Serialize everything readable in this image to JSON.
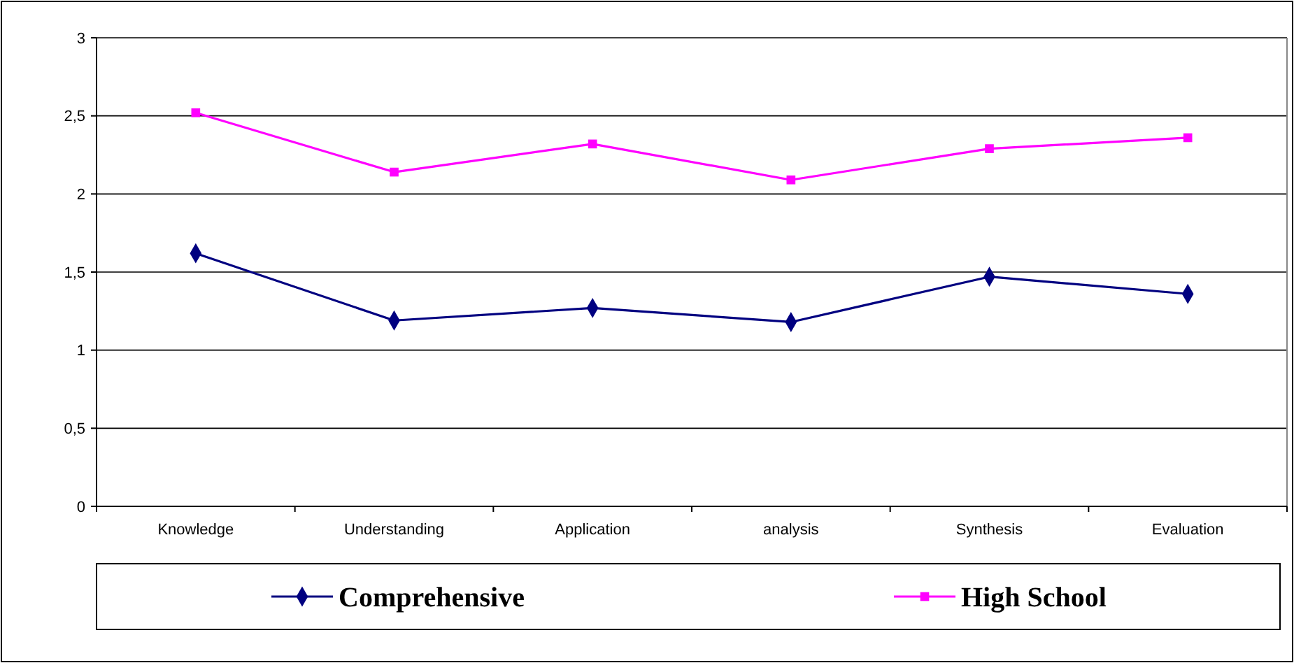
{
  "chart_data": {
    "type": "line",
    "categories": [
      "Knowledge",
      "Understanding",
      "Application",
      "analysis",
      "Synthesis",
      "Evaluation"
    ],
    "series": [
      {
        "name": "Comprehensive",
        "color": "#000080",
        "marker": "diamond",
        "values": [
          1.62,
          1.19,
          1.27,
          1.18,
          1.47,
          1.36
        ]
      },
      {
        "name": "High School",
        "color": "#ff00ff",
        "marker": "square",
        "values": [
          2.52,
          2.14,
          2.32,
          2.09,
          2.29,
          2.36
        ]
      }
    ],
    "ylim": [
      0,
      3
    ],
    "yticks": [
      {
        "value": 0,
        "label": "0"
      },
      {
        "value": 0.5,
        "label": "0,5"
      },
      {
        "value": 1,
        "label": "1"
      },
      {
        "value": 1.5,
        "label": "1,5"
      },
      {
        "value": 2,
        "label": "2"
      },
      {
        "value": 2.5,
        "label": "2,5"
      },
      {
        "value": 3,
        "label": "3"
      }
    ],
    "grid": "y",
    "legend": "bottom"
  }
}
